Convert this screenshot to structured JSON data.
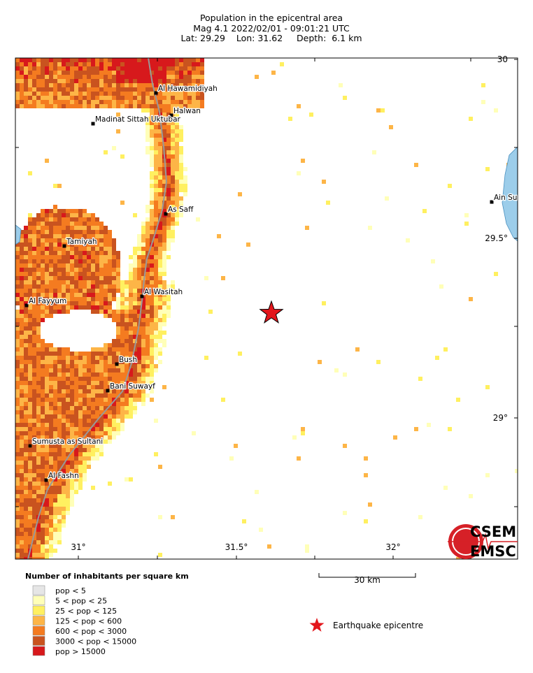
{
  "header": {
    "title": "Population in the epicentral area",
    "line2": "Mag 4.1  2022/02/01 - 09:01:21 UTC",
    "line3": "Lat: 29.29    Lon: 31.62     Depth:  6.1 km"
  },
  "map": {
    "lon_labels": [
      "31°",
      "31.5°",
      "32°"
    ],
    "lat_labels": [
      "30",
      "29.5°",
      "29°"
    ],
    "places": [
      "Al Hawamidiyah",
      "Halwan",
      "Madinat Sittah Uktubar",
      "As Saff",
      "Tamiyah",
      "Al Wasitah",
      "Al Fayyum",
      "Bush",
      "Bani Suwayf",
      "Sumusta as Sultani",
      "Al Fashn",
      "Ain Su"
    ]
  },
  "legend": {
    "title": "Number of inhabitants per square km",
    "entries": [
      "pop < 5",
      "5 < pop < 25",
      "25 < pop < 125",
      "125 < pop < 600",
      "600 < pop < 3000",
      "3000 < pop < 15000",
      "pop > 15000"
    ],
    "scale": "30 km",
    "epicentre": "Earthquake epicentre"
  },
  "logo": {
    "top": "CSEM",
    "bottom": "EMSC"
  }
}
